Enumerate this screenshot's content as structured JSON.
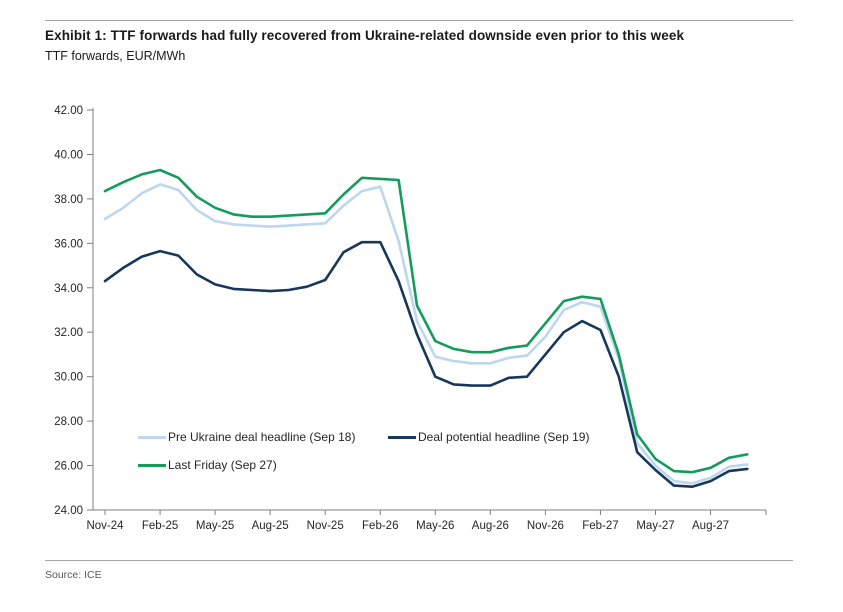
{
  "header": {
    "title": "Exhibit 1: TTF forwards had fully recovered from Ukraine-related downside even prior to this week",
    "subtitle": "TTF forwards, EUR/MWh"
  },
  "source": "Source: ICE",
  "chart_data": {
    "type": "line",
    "x": [
      "Nov-24",
      "Dec-24",
      "Jan-25",
      "Feb-25",
      "Mar-25",
      "Apr-25",
      "May-25",
      "Jun-25",
      "Jul-25",
      "Aug-25",
      "Sep-25",
      "Oct-25",
      "Nov-25",
      "Dec-25",
      "Jan-26",
      "Feb-26",
      "Mar-26",
      "Apr-26",
      "May-26",
      "Jun-26",
      "Jul-26",
      "Aug-26",
      "Sep-26",
      "Oct-26",
      "Nov-26",
      "Dec-26",
      "Jan-27",
      "Feb-27",
      "Mar-27",
      "Apr-27",
      "May-27",
      "Jun-27",
      "Jul-27",
      "Aug-27",
      "Sep-27",
      "Oct-27"
    ],
    "x_tick_every": 3,
    "ylim": [
      24,
      42
    ],
    "ytick_step": 2,
    "ytick_format_decimals": 2,
    "grid": false,
    "legend_position": "inside-bottom-left",
    "axis_color": "#7f7f7f",
    "tick_label_color": "#262626",
    "series": [
      {
        "name": "Pre Ukraine deal headline (Sep 18)",
        "color": "#bdd7ee",
        "values": [
          37.1,
          37.6,
          38.25,
          38.65,
          38.4,
          37.5,
          37.0,
          36.85,
          36.8,
          36.75,
          36.8,
          36.85,
          36.9,
          37.7,
          38.35,
          38.55,
          36.1,
          32.5,
          30.9,
          30.7,
          30.6,
          30.6,
          30.85,
          30.95,
          31.8,
          33.0,
          33.35,
          33.15,
          30.8,
          27.0,
          26.0,
          25.3,
          25.2,
          25.45,
          25.95,
          26.05
        ]
      },
      {
        "name": "Deal potential headline (Sep 19)",
        "color": "#17375d",
        "values": [
          34.3,
          34.9,
          35.4,
          35.65,
          35.45,
          34.6,
          34.15,
          33.95,
          33.9,
          33.85,
          33.9,
          34.05,
          34.35,
          35.6,
          36.05,
          36.05,
          34.3,
          31.9,
          30.0,
          29.65,
          29.6,
          29.6,
          29.95,
          30.0,
          31.0,
          32.0,
          32.5,
          32.1,
          30.0,
          26.6,
          25.8,
          25.1,
          25.05,
          25.3,
          25.75,
          25.85
        ]
      },
      {
        "name": "Last Friday (Sep 27)",
        "color": "#159c5d",
        "values": [
          38.35,
          38.75,
          39.1,
          39.3,
          38.95,
          38.1,
          37.6,
          37.3,
          37.2,
          37.2,
          37.25,
          37.3,
          37.35,
          38.2,
          38.95,
          38.9,
          38.85,
          33.2,
          31.6,
          31.25,
          31.1,
          31.1,
          31.3,
          31.4,
          32.4,
          33.4,
          33.6,
          33.5,
          31.0,
          27.4,
          26.3,
          25.75,
          25.7,
          25.9,
          26.35,
          26.5
        ]
      }
    ]
  }
}
